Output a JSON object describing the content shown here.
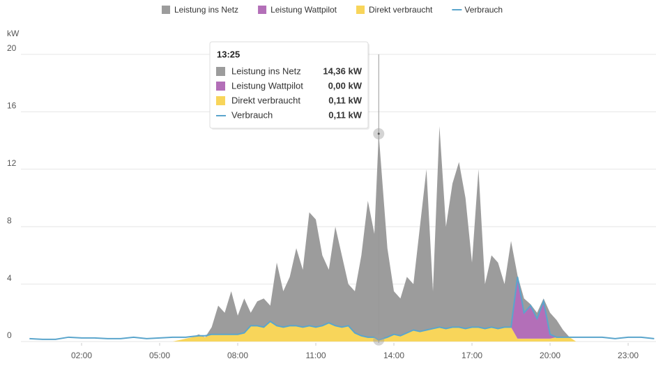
{
  "chart_data": {
    "type": "area",
    "y_label": "kW",
    "x": [
      0,
      0.5,
      1,
      1.5,
      2,
      2.5,
      3,
      3.5,
      4,
      4.5,
      5,
      5.5,
      5.75,
      6,
      6.25,
      6.5,
      6.75,
      7,
      7.25,
      7.5,
      7.75,
      8,
      8.25,
      8.5,
      8.75,
      9,
      9.25,
      9.5,
      9.75,
      10,
      10.25,
      10.5,
      10.75,
      11,
      11.25,
      11.5,
      11.75,
      12,
      12.25,
      12.5,
      12.75,
      13,
      13.25,
      13.4167,
      13.75,
      14,
      14.25,
      14.5,
      14.75,
      15,
      15.25,
      15.5,
      15.75,
      16,
      16.25,
      16.5,
      16.75,
      17,
      17.25,
      17.5,
      17.75,
      18,
      18.25,
      18.5,
      18.75,
      19,
      19.25,
      19.5,
      19.75,
      20,
      20.25,
      20.5,
      20.75,
      21,
      21.5,
      22,
      22.5,
      23,
      23.5,
      24
    ],
    "xlim": [
      -0.33,
      24.07
    ],
    "xticks": [
      {
        "value": 2,
        "label": "02:00"
      },
      {
        "value": 5,
        "label": "05:00"
      },
      {
        "value": 8,
        "label": "08:00"
      },
      {
        "value": 11,
        "label": "11:00"
      },
      {
        "value": 14,
        "label": "14:00"
      },
      {
        "value": 17,
        "label": "17:00"
      },
      {
        "value": 20,
        "label": "20:00"
      },
      {
        "value": 23,
        "label": "23:00"
      }
    ],
    "ylim": [
      0,
      20
    ],
    "yticks": [
      0,
      4,
      8,
      12,
      16,
      20
    ],
    "grid": true,
    "stacked": true,
    "series": [
      {
        "name": "Direkt verbraucht",
        "color": "#f8d55a",
        "type": "area",
        "values": [
          0,
          0,
          0,
          0,
          0,
          0,
          0,
          0,
          0,
          0,
          0,
          0,
          0.1,
          0.2,
          0.3,
          0.4,
          0.3,
          0.5,
          0.5,
          0.5,
          0.5,
          0.5,
          0.6,
          1.1,
          1.1,
          1.0,
          1.4,
          1.1,
          1.0,
          1.1,
          1.1,
          1.0,
          1.1,
          1.0,
          1.1,
          1.3,
          1.1,
          1.0,
          1.1,
          0.6,
          0.4,
          0.3,
          0.3,
          0.11,
          0.3,
          0.5,
          0.4,
          0.6,
          0.8,
          0.7,
          0.8,
          0.9,
          1.0,
          0.9,
          1.0,
          1.0,
          0.9,
          1.0,
          1.0,
          0.9,
          1.0,
          0.9,
          1.0,
          1.0,
          0.2,
          0.2,
          0.2,
          0.2,
          0.2,
          0.2,
          0.3,
          0.3,
          0.3,
          0,
          0,
          0,
          0,
          0,
          0,
          0
        ]
      },
      {
        "name": "Leistung Wattpilot",
        "color": "#b36fb8",
        "type": "area",
        "values": [
          0,
          0,
          0,
          0,
          0,
          0,
          0,
          0,
          0,
          0,
          0,
          0,
          0,
          0,
          0,
          0,
          0,
          0,
          0,
          0,
          0,
          0,
          0,
          0,
          0,
          0,
          0,
          0,
          0,
          0,
          0,
          0,
          0,
          0,
          0,
          0,
          0,
          0,
          0,
          0,
          0,
          0,
          0,
          0,
          0,
          0,
          0,
          0,
          0,
          0,
          0,
          0,
          0,
          0,
          0,
          0,
          0,
          0,
          0,
          0,
          0,
          0,
          0,
          0,
          4.3,
          1.8,
          2.3,
          1.4,
          2.6,
          0.3,
          0,
          0,
          0,
          0,
          0,
          0,
          0,
          0,
          0,
          0
        ]
      },
      {
        "name": "Leistung ins Netz",
        "color": "#9c9c9c",
        "type": "area",
        "values": [
          0,
          0,
          0,
          0,
          0,
          0,
          0,
          0,
          0,
          0,
          0,
          0,
          0,
          0,
          0,
          0.1,
          0,
          0.5,
          2.0,
          1.5,
          3.0,
          1.3,
          2.4,
          0.9,
          1.7,
          2.0,
          1.1,
          4.4,
          2.5,
          3.4,
          5.4,
          4.0,
          7.9,
          7.5,
          4.9,
          3.7,
          6.9,
          5.0,
          2.9,
          2.9,
          5.6,
          9.5,
          7.2,
          14.36,
          6.2,
          3.0,
          2.6,
          3.9,
          3.2,
          7.3,
          11.2,
          2.6,
          14.0,
          7.1,
          10.0,
          11.5,
          9.1,
          4.5,
          11.0,
          3.1,
          5.0,
          4.6,
          3.0,
          6.0,
          0.1,
          1.0,
          0.1,
          0.4,
          0.2,
          1.5,
          1.2,
          0.5,
          0,
          0,
          0,
          0,
          0,
          0,
          0,
          0
        ]
      },
      {
        "name": "Verbrauch",
        "color": "#5aa5cc",
        "type": "line",
        "values": [
          0.2,
          0.15,
          0.15,
          0.3,
          0.25,
          0.25,
          0.2,
          0.2,
          0.3,
          0.2,
          0.25,
          0.3,
          0.3,
          0.3,
          0.35,
          0.4,
          0.4,
          0.5,
          0.5,
          0.5,
          0.5,
          0.5,
          0.6,
          1.1,
          1.1,
          1.0,
          1.4,
          1.1,
          1.0,
          1.1,
          1.1,
          1.0,
          1.1,
          1.0,
          1.1,
          1.3,
          1.1,
          1.0,
          1.1,
          0.6,
          0.4,
          0.3,
          0.3,
          0.11,
          0.3,
          0.5,
          0.4,
          0.6,
          0.8,
          0.7,
          0.8,
          0.9,
          1.0,
          0.9,
          1.0,
          1.0,
          0.9,
          1.0,
          1.0,
          0.9,
          1.0,
          0.9,
          1.0,
          1.0,
          4.5,
          2.0,
          2.5,
          1.6,
          2.8,
          0.5,
          0.3,
          0.3,
          0.3,
          0.3,
          0.3,
          0.3,
          0.2,
          0.3,
          0.3,
          0.2
        ]
      }
    ],
    "legend_order": [
      2,
      1,
      0,
      3
    ],
    "tooltip": {
      "title": "13:25",
      "rows": [
        {
          "name": "Leistung ins Netz",
          "value": "14,36 kW"
        },
        {
          "name": "Leistung Wattpilot",
          "value": "0,00 kW"
        },
        {
          "name": "Direkt verbraucht",
          "value": "0,11 kW"
        },
        {
          "name": "Verbrauch",
          "value": "0,11 kW"
        }
      ]
    }
  }
}
